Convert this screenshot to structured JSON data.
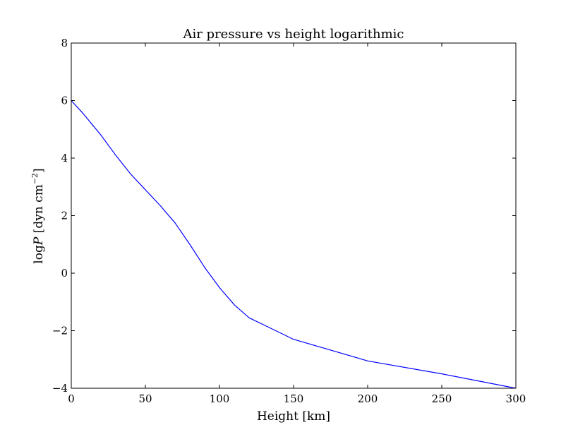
{
  "chart_data": {
    "type": "line",
    "title": "Air pressure vs height logarithmic",
    "xlabel": "Height [km]",
    "ylabel": {
      "prefix": "log",
      "variable": "P",
      "units": " [dyn cm",
      "exponent": "−2",
      "close": "]"
    },
    "xlim": [
      0,
      300
    ],
    "ylim": [
      -4,
      8
    ],
    "xticks": [
      0,
      50,
      100,
      150,
      200,
      250,
      300
    ],
    "xtick_labels": [
      "0",
      "50",
      "100",
      "150",
      "200",
      "250",
      "300"
    ],
    "yticks": [
      -4,
      -2,
      0,
      2,
      4,
      6,
      8
    ],
    "ytick_labels": [
      "−4",
      "−2",
      "0",
      "2",
      "4",
      "6",
      "8"
    ],
    "grid": false,
    "series": [
      {
        "color": "#0000ff",
        "x": [
          0,
          8,
          20,
          30,
          40,
          50,
          60,
          70,
          80,
          90,
          100,
          110,
          120,
          150,
          200,
          250,
          300
        ],
        "y": [
          6.0,
          5.55,
          4.8,
          4.1,
          3.45,
          2.9,
          2.35,
          1.75,
          1.0,
          0.2,
          -0.5,
          -1.1,
          -1.55,
          -2.3,
          -3.05,
          -3.5,
          -4.0
        ]
      }
    ]
  }
}
